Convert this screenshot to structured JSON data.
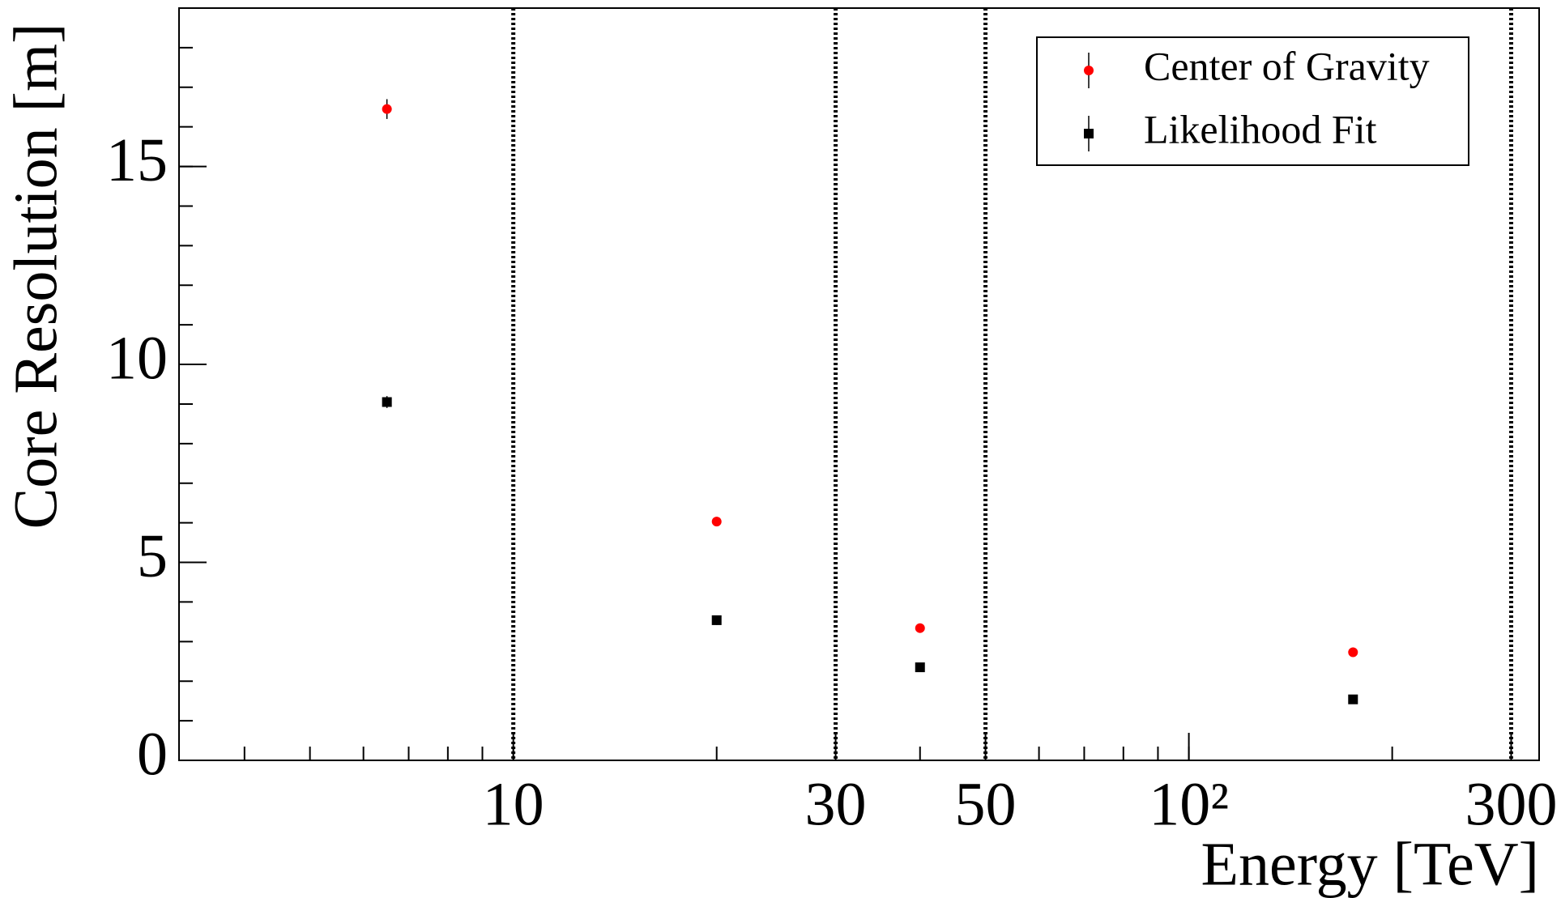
{
  "chart_data": {
    "type": "scatter",
    "x_label": "Energy [TeV]",
    "y_label": "Core Resolution [m]",
    "xlim": [
      3.2,
      330
    ],
    "ylim": [
      0,
      19
    ],
    "xlog": true,
    "xticks": [
      10,
      30,
      50,
      {
        "value": 100,
        "label": "10²"
      },
      300
    ],
    "yticks": [
      0,
      5,
      10,
      15
    ],
    "vlines": [
      10,
      30,
      50,
      300
    ],
    "legend": "top-right",
    "series": [
      {
        "name": "Center of Gravity",
        "color": "#ff0000",
        "marker": "circle",
        "x": [
          6.5,
          20,
          40,
          175
        ],
        "values": [
          16.45,
          6.03,
          3.34,
          2.73
        ],
        "errors": [
          0.25,
          0.1,
          0.05,
          0.05
        ]
      },
      {
        "name": "Likelihood Fit",
        "color": "#000000",
        "marker": "square",
        "x": [
          6.5,
          20,
          40,
          175
        ],
        "values": [
          9.05,
          3.54,
          2.35,
          1.54
        ],
        "errors": [
          0.15,
          0.12,
          0.05,
          0.05
        ]
      }
    ]
  }
}
